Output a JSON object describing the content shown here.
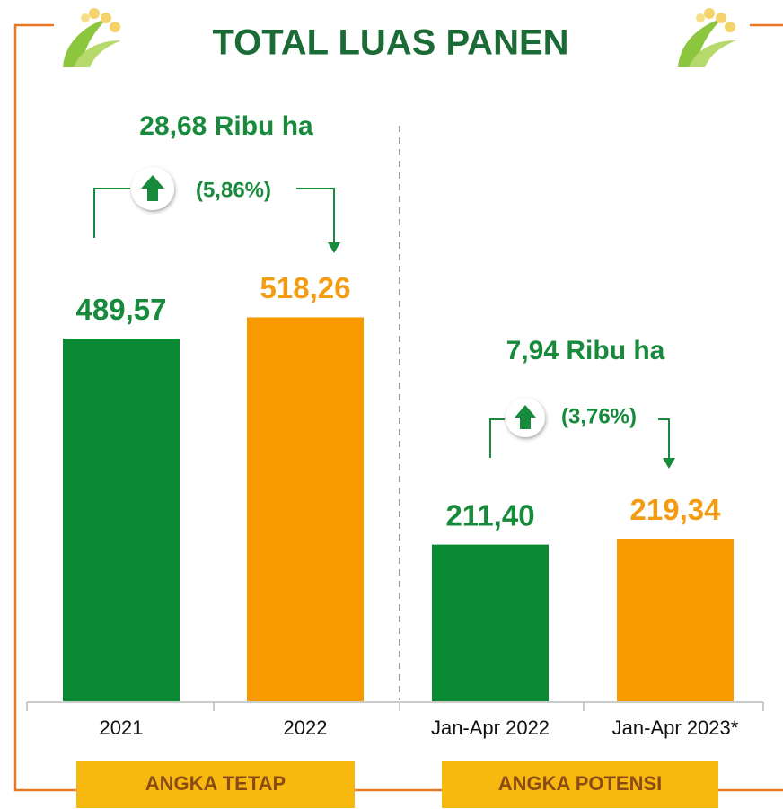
{
  "chart_data": {
    "type": "bar",
    "title": "TOTAL LUAS PANEN",
    "categories": [
      "2021",
      "2022",
      "Jan-Apr 2022",
      "Jan-Apr 2023*"
    ],
    "values": [
      489.57,
      518.26,
      211.4,
      219.34
    ],
    "value_labels": [
      "489,57",
      "518,26",
      "211,40",
      "219,34"
    ],
    "colors": [
      "#0a8a35",
      "#f89a00",
      "#0a8a35",
      "#f89a00"
    ],
    "label_colors": [
      "#178a3b",
      "#f39c12",
      "#178a3b",
      "#f39c12"
    ],
    "annotations": [
      {
        "amount": "28,68 Ribu ha",
        "change": "(5,86%)"
      },
      {
        "amount": "7,94 Ribu ha",
        "change": "(3,76%)"
      }
    ],
    "groups": [
      "ANGKA TETAP",
      "ANGKA POTENSI"
    ]
  }
}
